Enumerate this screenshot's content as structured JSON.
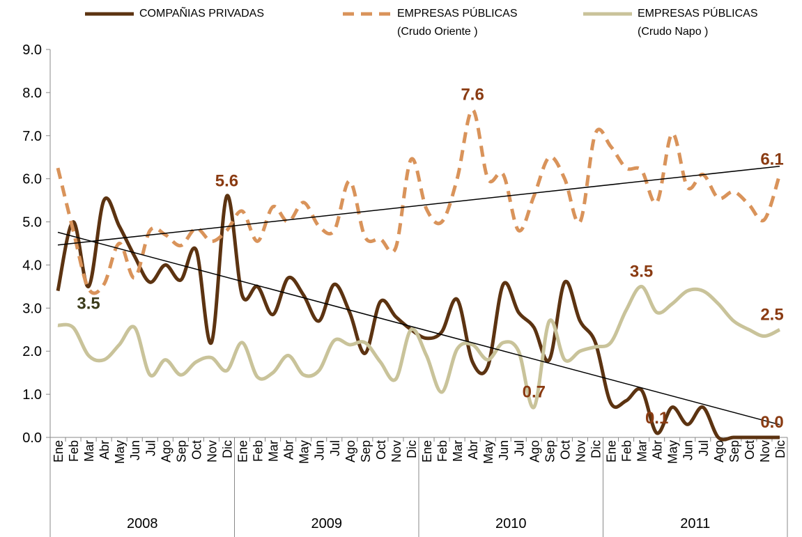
{
  "chart_data": {
    "type": "line",
    "categories": [
      "Ene",
      "Feb",
      "Mar",
      "Abr",
      "May",
      "Jun",
      "Jul",
      "Ago",
      "Sep",
      "Oct",
      "Nov",
      "Dic",
      "Ene",
      "Feb",
      "Mar",
      "Abr",
      "May",
      "Jun",
      "Jul",
      "Ago",
      "Sep",
      "Oct",
      "Nov",
      "Dic",
      "Ene",
      "Feb",
      "Mar",
      "Abr",
      "May",
      "Jun",
      "Jul",
      "Ago",
      "Sep",
      "Oct",
      "Nov",
      "Dic",
      "Ene",
      "Feb",
      "Mar",
      "Abr",
      "May",
      "Jun",
      "Jul",
      "Ago",
      "Sep",
      "Oct",
      "Nov",
      "Dic"
    ],
    "groups": [
      "2008",
      "2009",
      "2010",
      "2011"
    ],
    "ylim": [
      0,
      9
    ],
    "yticks": [
      {
        "value": 0,
        "label": "0.0"
      },
      {
        "value": 1,
        "label": "1.0"
      },
      {
        "value": 2,
        "label": "2.0"
      },
      {
        "value": 3,
        "label": "3.0"
      },
      {
        "value": 4,
        "label": "4.0"
      },
      {
        "value": 5,
        "label": "5.0"
      },
      {
        "value": 6,
        "label": "6.0"
      },
      {
        "value": 7,
        "label": "7.0"
      },
      {
        "value": 8,
        "label": "8.0"
      },
      {
        "value": 9,
        "label": "9.0"
      }
    ],
    "series": [
      {
        "name": "COMPAÑIAS PRIVADAS",
        "color": "#5c3311",
        "dash": false,
        "trendline": true,
        "values": [
          3.4,
          5.0,
          3.5,
          5.5,
          4.9,
          4.2,
          3.6,
          4.0,
          3.65,
          4.35,
          2.2,
          5.6,
          3.3,
          3.5,
          2.85,
          3.7,
          3.3,
          2.7,
          3.55,
          2.9,
          1.95,
          3.15,
          2.8,
          2.5,
          2.3,
          2.45,
          3.2,
          1.75,
          1.65,
          3.55,
          2.9,
          2.55,
          1.8,
          3.6,
          2.7,
          2.2,
          0.8,
          0.85,
          1.1,
          0.1,
          0.7,
          0.3,
          0.7,
          0,
          0,
          0,
          0,
          0
        ],
        "value_labels": [
          null,
          null,
          "3.5",
          null,
          null,
          null,
          null,
          null,
          null,
          null,
          null,
          "5.6",
          null,
          null,
          null,
          null,
          null,
          null,
          null,
          null,
          null,
          null,
          null,
          null,
          null,
          null,
          null,
          null,
          null,
          null,
          null,
          null,
          null,
          null,
          null,
          null,
          null,
          null,
          null,
          "0.1",
          null,
          null,
          null,
          null,
          null,
          null,
          null,
          "0.0"
        ]
      },
      {
        "name": "EMPRESAS PÚBLICAS (Crudo Oriente )",
        "color": "#d9935a",
        "dash": true,
        "trendline": true,
        "values": [
          6.25,
          4.8,
          3.45,
          3.55,
          4.5,
          3.7,
          4.8,
          4.7,
          4.45,
          4.85,
          4.55,
          4.8,
          5.25,
          4.55,
          5.35,
          5.0,
          5.45,
          4.9,
          4.8,
          5.95,
          4.65,
          4.6,
          4.4,
          6.45,
          5.3,
          5.0,
          6.0,
          7.6,
          6.0,
          6.1,
          4.8,
          5.6,
          6.5,
          6.0,
          5.0,
          7.05,
          6.75,
          6.25,
          6.2,
          5.45,
          7.05,
          5.8,
          6.1,
          5.55,
          5.7,
          5.4,
          5.05,
          6.1
        ],
        "value_labels": [
          null,
          null,
          null,
          null,
          null,
          null,
          null,
          null,
          null,
          null,
          null,
          null,
          null,
          null,
          null,
          null,
          null,
          null,
          null,
          null,
          null,
          null,
          null,
          null,
          null,
          null,
          null,
          "7.6",
          null,
          null,
          null,
          null,
          null,
          null,
          null,
          null,
          null,
          null,
          null,
          null,
          null,
          null,
          null,
          null,
          null,
          null,
          null,
          "6.1"
        ]
      },
      {
        "name": "EMPRESAS PÚBLICAS (Crudo Napo )",
        "color": "#c9c39a",
        "dash": false,
        "trendline": false,
        "values": [
          2.6,
          2.55,
          1.9,
          1.8,
          2.15,
          2.55,
          1.45,
          1.8,
          1.45,
          1.75,
          1.85,
          1.55,
          2.2,
          1.4,
          1.5,
          1.9,
          1.45,
          1.55,
          2.25,
          2.15,
          2.2,
          1.75,
          1.35,
          2.5,
          1.9,
          1.05,
          2.05,
          2.15,
          1.8,
          2.2,
          2.0,
          0.7,
          2.7,
          1.8,
          2.0,
          2.1,
          2.2,
          2.95,
          3.5,
          2.9,
          3.1,
          3.4,
          3.4,
          3.1,
          2.7,
          2.5,
          2.35,
          2.5
        ],
        "value_labels": [
          null,
          null,
          null,
          null,
          null,
          null,
          null,
          null,
          null,
          null,
          null,
          null,
          null,
          null,
          null,
          null,
          null,
          null,
          null,
          null,
          null,
          null,
          null,
          null,
          null,
          null,
          null,
          null,
          null,
          null,
          null,
          "0.7",
          null,
          null,
          null,
          null,
          null,
          null,
          "3.5",
          null,
          null,
          null,
          null,
          null,
          null,
          null,
          null,
          "2.5"
        ]
      }
    ]
  }
}
